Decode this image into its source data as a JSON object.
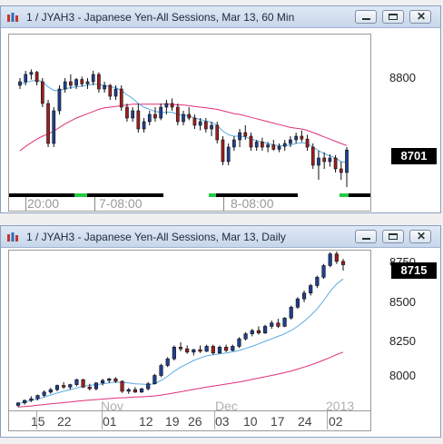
{
  "top": {
    "title": "1 / JYAH3 - Japanese Yen-All Sessions, Mar 13, 60 Min",
    "y_labels": [
      "8800"
    ],
    "price": "8701",
    "x_labels": [
      "20:00",
      "7-08:00",
      "8-08:00"
    ]
  },
  "bottom": {
    "title": "1 / JYAH3 - Japanese Yen-All Sessions, Mar 13, Daily",
    "y_labels": [
      "8750",
      "8500",
      "8250",
      "8000"
    ],
    "price": "8715",
    "months": [
      "Nov",
      "Dec",
      "2013"
    ],
    "x_labels": [
      "15",
      "22",
      "01",
      "12",
      "19",
      "26",
      "03",
      "10",
      "17",
      "24",
      "02"
    ]
  },
  "colors": {
    "up": "#1f3f8f",
    "down": "#9c1f1f",
    "fast_ma": "#5aaae0",
    "slow_ma": "#e0307a",
    "session": "#22cc44"
  },
  "chart_data": [
    {
      "type": "candlestick",
      "title": "1 / JYAH3 - Japanese Yen-All Sessions, Mar 13, 60 Min",
      "ylim": [
        8640,
        8860
      ],
      "last_price": 8701,
      "candles": [
        [
          8790,
          8800,
          8785,
          8795
        ],
        [
          8795,
          8810,
          8790,
          8805
        ],
        [
          8805,
          8812,
          8798,
          8808
        ],
        [
          8808,
          8810,
          8790,
          8795
        ],
        [
          8795,
          8800,
          8760,
          8765
        ],
        [
          8765,
          8770,
          8705,
          8710
        ],
        [
          8710,
          8760,
          8705,
          8755
        ],
        [
          8755,
          8790,
          8750,
          8785
        ],
        [
          8785,
          8800,
          8780,
          8795
        ],
        [
          8795,
          8805,
          8785,
          8790
        ],
        [
          8790,
          8800,
          8785,
          8798
        ],
        [
          8798,
          8802,
          8788,
          8792
        ],
        [
          8792,
          8800,
          8785,
          8795
        ],
        [
          8795,
          8810,
          8790,
          8805
        ],
        [
          8805,
          8808,
          8780,
          8785
        ],
        [
          8785,
          8795,
          8780,
          8790
        ],
        [
          8790,
          8792,
          8770,
          8775
        ],
        [
          8775,
          8790,
          8770,
          8785
        ],
        [
          8785,
          8790,
          8755,
          8760
        ],
        [
          8760,
          8765,
          8740,
          8745
        ],
        [
          8745,
          8760,
          8740,
          8755
        ],
        [
          8755,
          8765,
          8725,
          8730
        ],
        [
          8730,
          8745,
          8725,
          8740
        ],
        [
          8740,
          8755,
          8735,
          8750
        ],
        [
          8750,
          8760,
          8740,
          8745
        ],
        [
          8745,
          8765,
          8742,
          8760
        ],
        [
          8760,
          8770,
          8750,
          8765
        ],
        [
          8765,
          8772,
          8755,
          8760
        ],
        [
          8760,
          8765,
          8735,
          8740
        ],
        [
          8740,
          8755,
          8735,
          8750
        ],
        [
          8750,
          8760,
          8742,
          8745
        ],
        [
          8745,
          8750,
          8730,
          8735
        ],
        [
          8735,
          8745,
          8728,
          8740
        ],
        [
          8740,
          8745,
          8725,
          8730
        ],
        [
          8730,
          8740,
          8720,
          8735
        ],
        [
          8735,
          8740,
          8710,
          8715
        ],
        [
          8715,
          8720,
          8680,
          8685
        ],
        [
          8685,
          8710,
          8680,
          8705
        ],
        [
          8705,
          8720,
          8700,
          8715
        ],
        [
          8715,
          8730,
          8705,
          8725
        ],
        [
          8725,
          8735,
          8715,
          8720
        ],
        [
          8720,
          8725,
          8700,
          8705
        ],
        [
          8705,
          8715,
          8700,
          8712
        ],
        [
          8712,
          8718,
          8700,
          8705
        ],
        [
          8705,
          8712,
          8698,
          8708
        ],
        [
          8708,
          8715,
          8700,
          8702
        ],
        [
          8702,
          8710,
          8698,
          8706
        ],
        [
          8706,
          8715,
          8700,
          8710
        ],
        [
          8710,
          8720,
          8705,
          8715
        ],
        [
          8715,
          8725,
          8710,
          8720
        ],
        [
          8720,
          8728,
          8712,
          8716
        ],
        [
          8716,
          8722,
          8700,
          8705
        ],
        [
          8705,
          8710,
          8675,
          8680
        ],
        [
          8680,
          8700,
          8660,
          8690
        ],
        [
          8690,
          8698,
          8675,
          8685
        ],
        [
          8685,
          8695,
          8678,
          8690
        ],
        [
          8690,
          8694,
          8670,
          8675
        ],
        [
          8675,
          8685,
          8660,
          8670
        ],
        [
          8670,
          8705,
          8650,
          8701
        ]
      ],
      "fast_ma": [
        8792,
        8794,
        8796,
        8797,
        8795,
        8788,
        8783,
        8783,
        8785,
        8787,
        8788,
        8789,
        8790,
        8792,
        8791,
        8790,
        8788,
        8787,
        8783,
        8777,
        8772,
        8765,
        8760,
        8757,
        8754,
        8753,
        8753,
        8753,
        8750,
        8749,
        8748,
        8745,
        8743,
        8741,
        8739,
        8735,
        8727,
        8722,
        8720,
        8720,
        8719,
        8716,
        8714,
        8712,
        8710,
        8708,
        8707,
        8707,
        8708,
        8710,
        8711,
        8710,
        8705,
        8700,
        8696,
        8693,
        8690,
        8685,
        8684
      ],
      "slow_ma": [
        8700,
        8706,
        8711,
        8716,
        8720,
        8723,
        8727,
        8732,
        8737,
        8741,
        8745,
        8748,
        8751,
        8754,
        8757,
        8759,
        8760,
        8761,
        8762,
        8763,
        8764,
        8764,
        8764,
        8764,
        8764,
        8764,
        8764,
        8764,
        8763,
        8763,
        8762,
        8761,
        8760,
        8759,
        8758,
        8757,
        8755,
        8753,
        8751,
        8750,
        8748,
        8746,
        8744,
        8742,
        8740,
        8738,
        8736,
        8734,
        8732,
        8731,
        8730,
        8728,
        8725,
        8722,
        8719,
        8716,
        8713,
        8710,
        8707
      ]
    },
    {
      "type": "candlestick",
      "title": "1 / JYAH3 - Japanese Yen-All Sessions, Mar 13, Daily",
      "ylim": [
        7840,
        8800
      ],
      "last_price": 8715,
      "candles": [
        [
          7870,
          7890,
          7860,
          7885
        ],
        [
          7885,
          7905,
          7875,
          7900
        ],
        [
          7900,
          7925,
          7890,
          7910
        ],
        [
          7910,
          7935,
          7900,
          7930
        ],
        [
          7930,
          7960,
          7920,
          7950
        ],
        [
          7950,
          7975,
          7940,
          7965
        ],
        [
          7965,
          7995,
          7955,
          7990
        ],
        [
          7990,
          8010,
          7970,
          7980
        ],
        [
          7980,
          8000,
          7965,
          7995
        ],
        [
          7995,
          8030,
          7985,
          8025
        ],
        [
          8025,
          8030,
          7975,
          7980
        ],
        [
          7980,
          8000,
          7960,
          7970
        ],
        [
          7970,
          8010,
          7960,
          8005
        ],
        [
          8005,
          8030,
          7990,
          8020
        ],
        [
          8020,
          8035,
          8005,
          8030
        ],
        [
          8030,
          8040,
          8005,
          8015
        ],
        [
          8015,
          8020,
          7945,
          7955
        ],
        [
          7955,
          7975,
          7940,
          7965
        ],
        [
          7965,
          7980,
          7945,
          7950
        ],
        [
          7950,
          7975,
          7945,
          7970
        ],
        [
          7970,
          8010,
          7960,
          8000
        ],
        [
          8000,
          8060,
          7995,
          8050
        ],
        [
          8050,
          8120,
          8040,
          8110
        ],
        [
          8110,
          8160,
          8100,
          8150
        ],
        [
          8150,
          8230,
          8140,
          8220
        ],
        [
          8220,
          8250,
          8195,
          8210
        ],
        [
          8210,
          8230,
          8180,
          8190
        ],
        [
          8190,
          8210,
          8170,
          8205
        ],
        [
          8205,
          8230,
          8185,
          8195
        ],
        [
          8195,
          8235,
          8190,
          8225
        ],
        [
          8225,
          8235,
          8175,
          8185
        ],
        [
          8185,
          8230,
          8180,
          8220
        ],
        [
          8220,
          8235,
          8190,
          8200
        ],
        [
          8200,
          8235,
          8195,
          8225
        ],
        [
          8225,
          8280,
          8215,
          8270
        ],
        [
          8270,
          8310,
          8260,
          8300
        ],
        [
          8300,
          8330,
          8285,
          8320
        ],
        [
          8320,
          8345,
          8295,
          8305
        ],
        [
          8305,
          8355,
          8300,
          8345
        ],
        [
          8345,
          8380,
          8330,
          8365
        ],
        [
          8365,
          8390,
          8335,
          8345
        ],
        [
          8345,
          8400,
          8340,
          8395
        ],
        [
          8395,
          8470,
          8385,
          8460
        ],
        [
          8460,
          8520,
          8450,
          8510
        ],
        [
          8510,
          8560,
          8490,
          8545
        ],
        [
          8545,
          8600,
          8530,
          8590
        ],
        [
          8590,
          8650,
          8575,
          8640
        ],
        [
          8640,
          8720,
          8630,
          8710
        ],
        [
          8710,
          8790,
          8700,
          8780
        ],
        [
          8780,
          8795,
          8720,
          8735
        ],
        [
          8735,
          8750,
          8680,
          8715
        ]
      ],
      "fast_ma": [
        7880,
        7890,
        7900,
        7910,
        7920,
        7932,
        7944,
        7955,
        7965,
        7975,
        7985,
        7990,
        7995,
        8000,
        8005,
        8010,
        8008,
        8005,
        8000,
        7998,
        7995,
        8000,
        8020,
        8045,
        8075,
        8100,
        8120,
        8140,
        8155,
        8168,
        8175,
        8180,
        8185,
        8192,
        8200,
        8212,
        8225,
        8240,
        8255,
        8270,
        8285,
        8300,
        8320,
        8345,
        8375,
        8410,
        8450,
        8500,
        8555,
        8600,
        8630
      ],
      "slow_ma": [
        7860,
        7863,
        7867,
        7871,
        7875,
        7879,
        7883,
        7887,
        7891,
        7895,
        7899,
        7902,
        7905,
        7908,
        7911,
        7914,
        7916,
        7918,
        7920,
        7922,
        7924,
        7927,
        7932,
        7938,
        7945,
        7952,
        7959,
        7966,
        7973,
        7980,
        7986,
        7992,
        7998,
        8004,
        8011,
        8018,
        8026,
        8034,
        8042,
        8050,
        8058,
        8067,
        8077,
        8088,
        8100,
        8113,
        8127,
        8142,
        8158,
        8175,
        8190
      ]
    }
  ]
}
